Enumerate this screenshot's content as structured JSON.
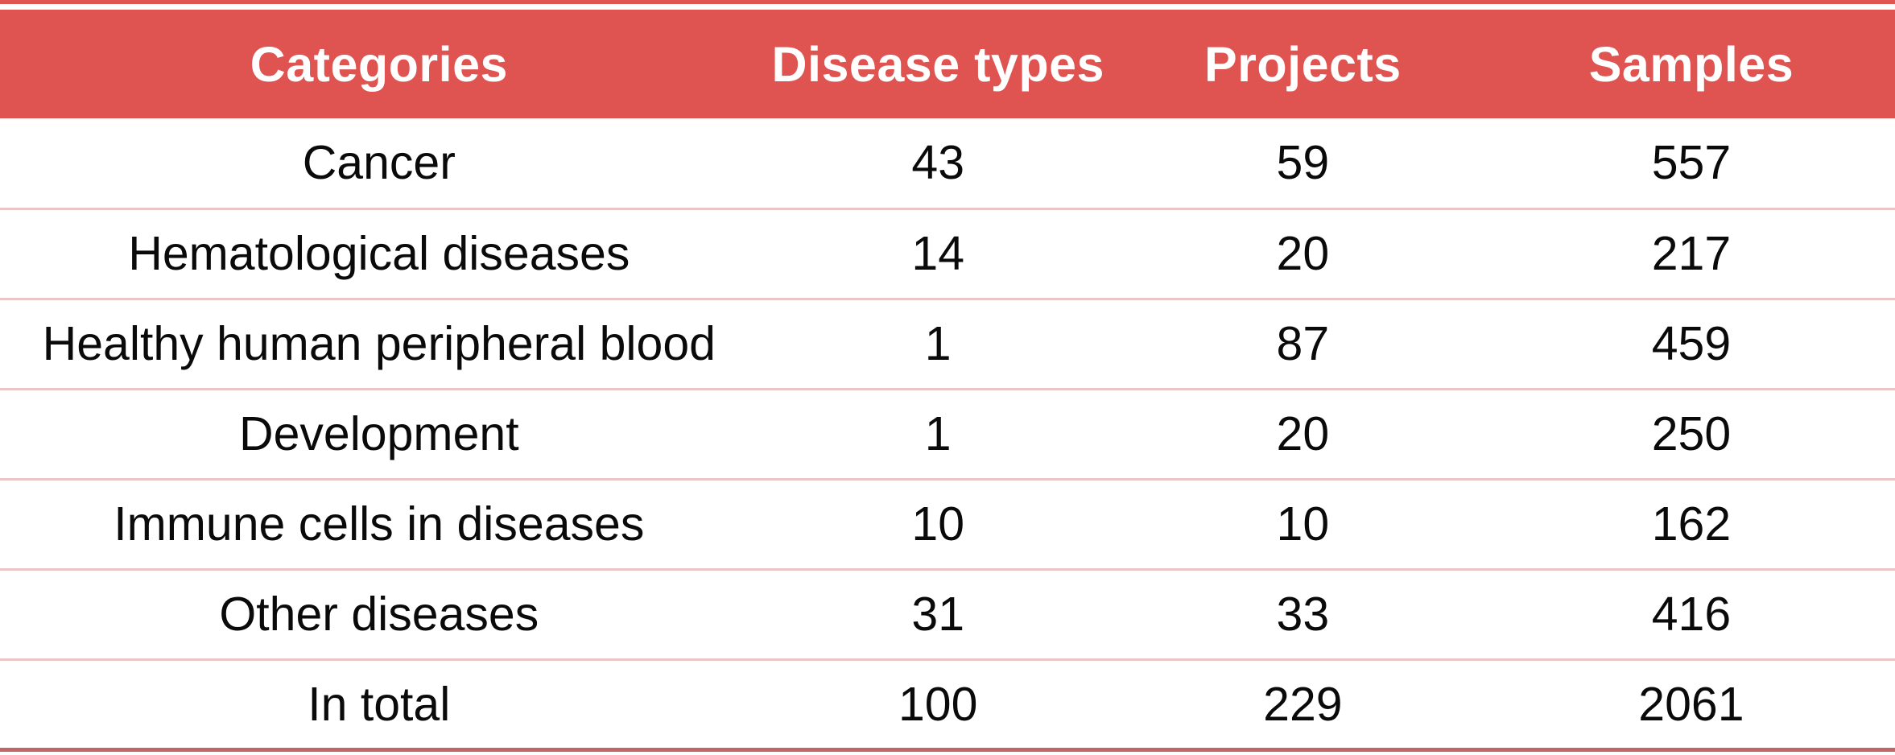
{
  "table": {
    "columns": [
      "Categories",
      "Disease types",
      "Projects",
      "Samples"
    ],
    "rows": [
      [
        "Cancer",
        "43",
        "59",
        "557"
      ],
      [
        "Hematological diseases",
        "14",
        "20",
        "217"
      ],
      [
        "Healthy human peripheral blood",
        "1",
        "87",
        "459"
      ],
      [
        "Development",
        "1",
        "20",
        "250"
      ],
      [
        "Immune cells in diseases",
        "10",
        "10",
        "162"
      ],
      [
        "Other diseases",
        "31",
        "33",
        "416"
      ],
      [
        "In total",
        "100",
        "229",
        "2061"
      ]
    ]
  },
  "chart_data": {
    "type": "table",
    "title": "",
    "columns": [
      "Categories",
      "Disease types",
      "Projects",
      "Samples"
    ],
    "rows": [
      {
        "category": "Cancer",
        "disease_types": 43,
        "projects": 59,
        "samples": 557
      },
      {
        "category": "Hematological diseases",
        "disease_types": 14,
        "projects": 20,
        "samples": 217
      },
      {
        "category": "Healthy human peripheral blood",
        "disease_types": 1,
        "projects": 87,
        "samples": 459
      },
      {
        "category": "Development",
        "disease_types": 1,
        "projects": 20,
        "samples": 250
      },
      {
        "category": "Immune cells in diseases",
        "disease_types": 10,
        "projects": 10,
        "samples": 162
      },
      {
        "category": "Other diseases",
        "disease_types": 31,
        "projects": 33,
        "samples": 416
      },
      {
        "category": "In total",
        "disease_types": 100,
        "projects": 229,
        "samples": 2061
      }
    ],
    "layout_hints": {
      "header_style": "bold white on red band",
      "row_separators": "thin light-pink horizontal rules",
      "bottom_rule": "thick muted red rule",
      "top_rule": "thin red rule above header",
      "cell_alignment": "center"
    }
  },
  "colors": {
    "header_bg": "#DF5350",
    "header_text": "#FFFFFF",
    "body_text": "#0A0A0A",
    "row_separator": "#ECC6C5",
    "top_rule": "#DF5350",
    "bottom_rule": "#C06568",
    "background": "#FFFFFF"
  }
}
